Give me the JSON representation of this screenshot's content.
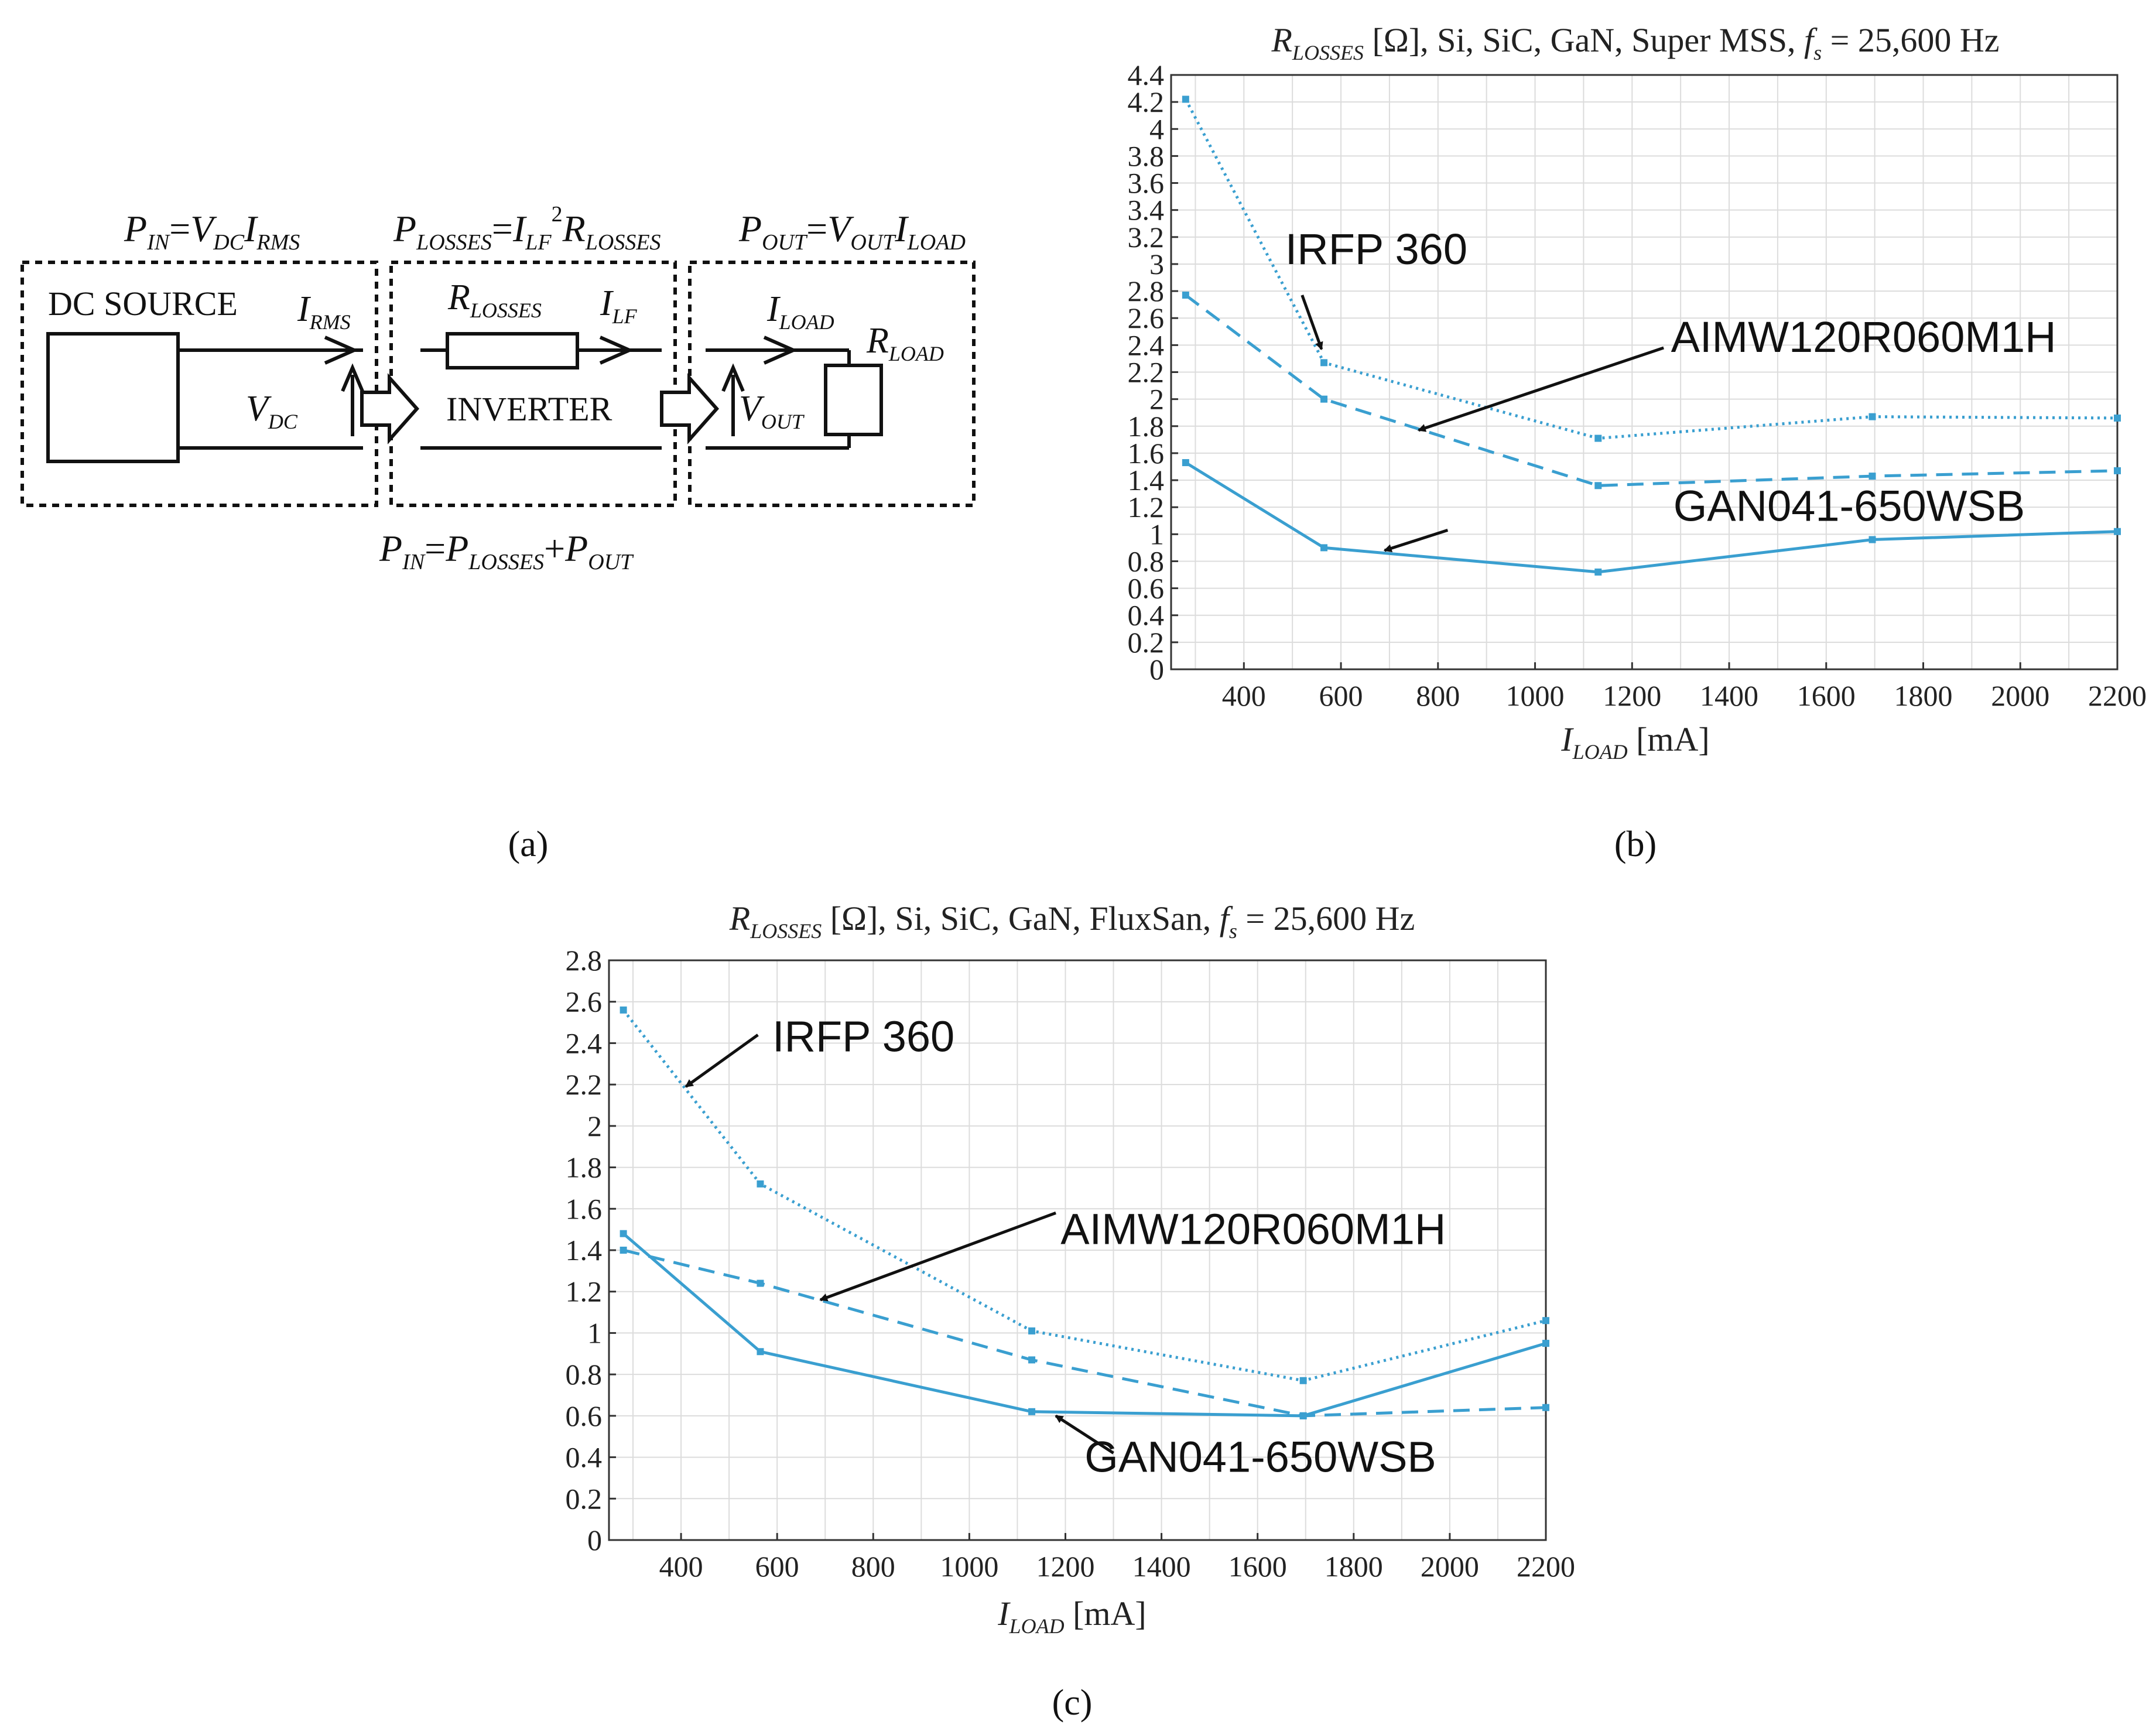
{
  "panel_labels": {
    "a": "(a)",
    "b": "(b)",
    "c": "(c)"
  },
  "diagram": {
    "eq_pin": {
      "p": "P",
      "p_sub": "IN",
      "eq": "=",
      "v": "V",
      "v_sub": "DC",
      "i": "I",
      "i_sub": "RMS"
    },
    "eq_plosses": {
      "p": "P",
      "p_sub": "LOSSES",
      "eq": "=",
      "i": "I",
      "i_sub": "LF",
      "sup": "2",
      "r": "R",
      "r_sub": "LOSSES"
    },
    "eq_pout": {
      "p": "P",
      "p_sub": "OUT",
      "eq": "=",
      "v": "V",
      "v_sub": "OUT",
      "i": "I",
      "i_sub": "LOAD"
    },
    "eq_balance": {
      "p1": "P",
      "p1_sub": "IN",
      "eq": "=",
      "p2": "P",
      "p2_sub": "LOSSES",
      "plus": "+",
      "p3": "P",
      "p3_sub": "OUT"
    },
    "dc_source": "DC SOURCE",
    "inverter": "INVERTER",
    "i_rms": {
      "base": "I",
      "sub": "RMS"
    },
    "v_dc": {
      "base": "V",
      "sub": "DC"
    },
    "r_losses": {
      "base": "R",
      "sub": "LOSSES"
    },
    "i_lf": {
      "base": "I",
      "sub": "LF"
    },
    "i_load": {
      "base": "I",
      "sub": "LOAD"
    },
    "r_load": {
      "base": "R",
      "sub": "LOAD"
    },
    "v_out": {
      "base": "V",
      "sub": "OUT"
    }
  },
  "chart_data": [
    {
      "id": "b",
      "type": "line",
      "title": {
        "r": "R",
        "r_sub": "LOSSES",
        "mid": " [Ω], Si, SiC, GaN, Super MSS, ",
        "f": "f",
        "f_sub": "s",
        "end": " = 25,600 Hz"
      },
      "xlabel": {
        "base": "I",
        "sub": "LOAD",
        "unit": " [mA]"
      },
      "ylabel": "",
      "xlim": [
        250,
        2200
      ],
      "ylim": [
        0,
        4.4
      ],
      "xticks": [
        400,
        600,
        800,
        1000,
        1200,
        1400,
        1600,
        1800,
        2000,
        2200
      ],
      "yticks": [
        0,
        0.2,
        0.4,
        0.6,
        0.8,
        1,
        1.2,
        1.4,
        1.6,
        1.8,
        2,
        2.2,
        2.4,
        2.6,
        2.8,
        3,
        3.2,
        3.4,
        3.6,
        3.8,
        4,
        4.2,
        4.4
      ],
      "grid": true,
      "color": "#3a9fd0",
      "series": [
        {
          "name": "IRFP 360",
          "dash": "dotted",
          "x": [
            280,
            565,
            1130,
            1695,
            2200
          ],
          "y": [
            4.22,
            2.27,
            1.71,
            1.87,
            1.86
          ]
        },
        {
          "name": "AIMW120R060M1H",
          "dash": "dashed",
          "x": [
            280,
            565,
            1130,
            1695,
            2200
          ],
          "y": [
            2.77,
            2.0,
            1.36,
            1.43,
            1.47
          ]
        },
        {
          "name": "GAN041-650WSB",
          "dash": "solid",
          "x": [
            280,
            565,
            1130,
            1695,
            2200
          ],
          "y": [
            1.53,
            0.9,
            0.72,
            0.96,
            1.02
          ]
        }
      ],
      "annotations": [
        {
          "text": "IRFP 360",
          "tx": 485,
          "ty": 3.0,
          "ax": 560,
          "ay": 2.37,
          "bx": 520,
          "by": 2.77
        },
        {
          "text": "AIMW120R060M1H",
          "tx": 1280,
          "ty": 2.35,
          "ax": 760,
          "ay": 1.77,
          "bx": 1265,
          "by": 2.38
        },
        {
          "text": "GAN041-650WSB",
          "tx": 1285,
          "ty": 1.1,
          "ax": 690,
          "ay": 0.88,
          "bx": 820,
          "by": 1.03
        }
      ]
    },
    {
      "id": "c",
      "type": "line",
      "title": {
        "r": "R",
        "r_sub": "LOSSES",
        "mid": " [Ω], Si, SiC, GaN, FluxSan, ",
        "f": "f",
        "f_sub": "s",
        "end": " = 25,600 Hz"
      },
      "xlabel": {
        "base": "I",
        "sub": "LOAD",
        "unit": " [mA]"
      },
      "ylabel": "",
      "xlim": [
        250,
        2200
      ],
      "ylim": [
        0,
        2.8
      ],
      "xticks": [
        400,
        600,
        800,
        1000,
        1200,
        1400,
        1600,
        1800,
        2000,
        2200
      ],
      "yticks": [
        0,
        0.2,
        0.4,
        0.6,
        0.8,
        1,
        1.2,
        1.4,
        1.6,
        1.8,
        2,
        2.2,
        2.4,
        2.6,
        2.8
      ],
      "grid": true,
      "color": "#3a9fd0",
      "series": [
        {
          "name": "IRFP 360",
          "dash": "dotted",
          "x": [
            280,
            565,
            1130,
            1695,
            2200
          ],
          "y": [
            2.56,
            1.72,
            1.01,
            0.77,
            1.06
          ]
        },
        {
          "name": "AIMW120R060M1H",
          "dash": "dashed",
          "x": [
            280,
            565,
            1130,
            1695,
            2200
          ],
          "y": [
            1.4,
            1.24,
            0.87,
            0.6,
            0.64
          ]
        },
        {
          "name": "GAN041-650WSB",
          "dash": "solid",
          "x": [
            280,
            565,
            1130,
            1695,
            2200
          ],
          "y": [
            1.48,
            0.91,
            0.62,
            0.6,
            0.95
          ]
        }
      ],
      "annotations": [
        {
          "text": "IRFP 360",
          "tx": 590,
          "ty": 2.36,
          "ax": 410,
          "ay": 2.19,
          "bx": 560,
          "by": 2.44
        },
        {
          "text": "AIMW120R060M1H",
          "tx": 1190,
          "ty": 1.43,
          "ax": 690,
          "ay": 1.16,
          "bx": 1180,
          "by": 1.58
        },
        {
          "text": "GAN041-650WSB",
          "tx": 1240,
          "ty": 0.33,
          "ax": 1180,
          "ay": 0.6,
          "bx": 1300,
          "by": 0.42
        }
      ]
    }
  ]
}
